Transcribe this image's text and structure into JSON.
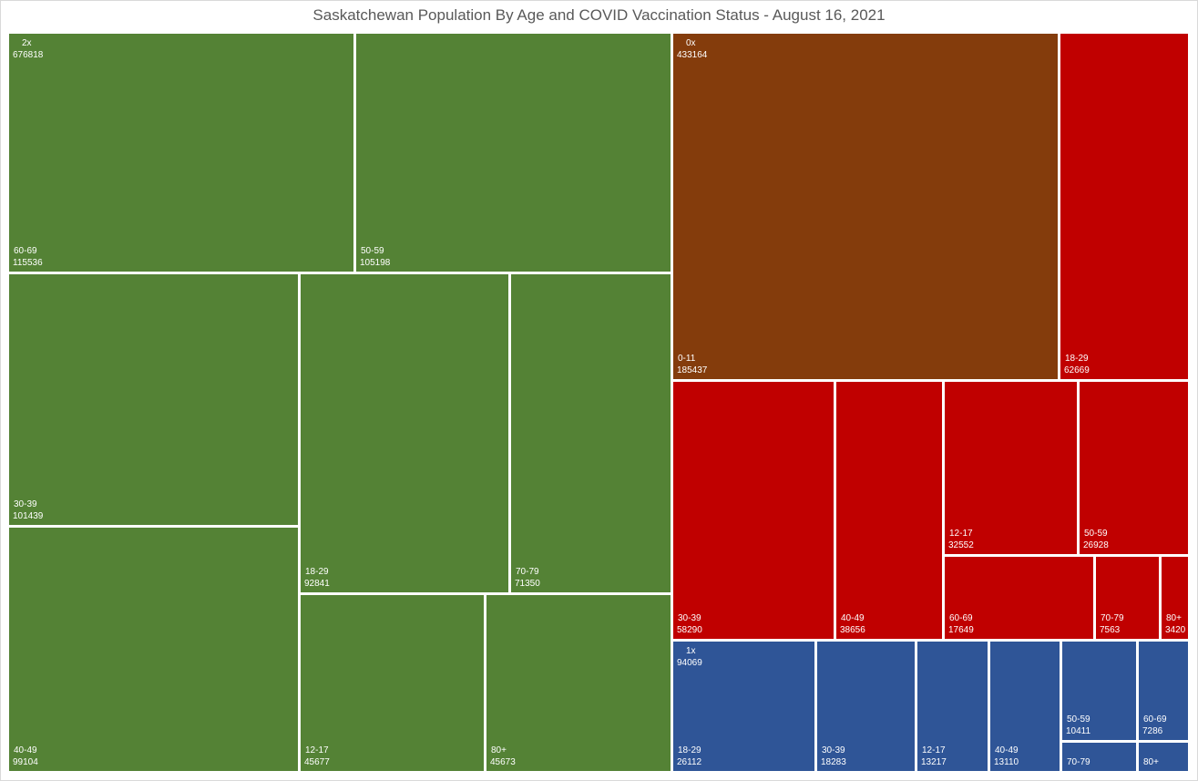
{
  "chart_data": {
    "type": "treemap",
    "title": "Saskatchewan Population By Age and COVID Vaccination Status - August 16, 2021",
    "groups": [
      {
        "name": "2x",
        "total": "676818",
        "color": "#548235",
        "items": [
          {
            "label": "60-69",
            "value": 115536
          },
          {
            "label": "50-59",
            "value": 105198
          },
          {
            "label": "30-39",
            "value": 101439
          },
          {
            "label": "40-49",
            "value": 99104
          },
          {
            "label": "18-29",
            "value": 92841
          },
          {
            "label": "70-79",
            "value": 71350
          },
          {
            "label": "12-17",
            "value": 45677
          },
          {
            "label": "80+",
            "value": 45673
          }
        ]
      },
      {
        "name": "0x",
        "total": "433164",
        "color": "#c00000",
        "items": [
          {
            "label": "0-11",
            "value": 185437,
            "color": "#843c0c"
          },
          {
            "label": "18-29",
            "value": 62669
          },
          {
            "label": "30-39",
            "value": 58290
          },
          {
            "label": "40-49",
            "value": 38656
          },
          {
            "label": "12-17",
            "value": 32552
          },
          {
            "label": "50-59",
            "value": 26928
          },
          {
            "label": "60-69",
            "value": 17649
          },
          {
            "label": "70-79",
            "value": 7563
          },
          {
            "label": "80+",
            "value": 3420
          }
        ]
      },
      {
        "name": "1x",
        "total": "94069",
        "color": "#2f5597",
        "items": [
          {
            "label": "18-29",
            "value": 26112
          },
          {
            "label": "30-39",
            "value": 18283
          },
          {
            "label": "12-17",
            "value": 13217
          },
          {
            "label": "40-49",
            "value": 13110
          },
          {
            "label": "50-59",
            "value": 10411
          },
          {
            "label": "60-69",
            "value": 7286
          },
          {
            "label": "70-79",
            "value": null
          },
          {
            "label": "80+",
            "value": null
          }
        ]
      }
    ]
  }
}
